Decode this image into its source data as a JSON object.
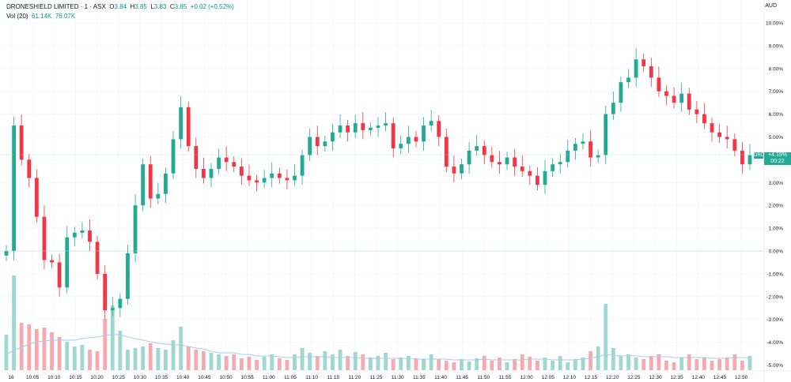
{
  "legend": {
    "symbol": "DRONESHIELD LIMITED · 1 · ASX",
    "open_label": "O",
    "open": "3.84",
    "high_label": "H",
    "high": "3.85",
    "low_label": "L",
    "low": "3.83",
    "close_label": "C",
    "close": "3.85",
    "change": "+0.02 (+0.52%)",
    "vol_label": "Vol (20)",
    "vol_value": "61.14K",
    "vol_ma": "76.07K"
  },
  "price_scale": {
    "currency": "AUD",
    "ticks": [
      "10.00%",
      "9.00%",
      "8.00%",
      "7.00%",
      "6.00%",
      "5.00%",
      "4.00%",
      "3.00%",
      "2.00%",
      "1.00%",
      "0.00%",
      "-1.00%",
      "-2.00%",
      "-3.00%",
      "-4.00%",
      "-5.00%"
    ]
  },
  "current": {
    "symbol_tag": "DRO",
    "change": "+4.19%",
    "countdown": "00:22"
  },
  "colors": {
    "up": "#22ab94",
    "down": "#f23645",
    "vol_up": "#9fd8cf",
    "vol_down": "#f7a9b0",
    "ma": "#aacbe9",
    "grid": "#f0f3fa"
  },
  "chart_data": {
    "type": "candlestick",
    "title": "DRONESHIELD LIMITED · 1 · ASX",
    "ylabel": "",
    "ylim": [
      -5.5,
      10.5
    ],
    "grid": true,
    "x_ticks": [
      "16",
      "10:05",
      "10:10",
      "10:15",
      "10:20",
      "10:25",
      "10:30",
      "10:35",
      "10:40",
      "10:45",
      "10:50",
      "10:55",
      "11:00",
      "11:05",
      "11:10",
      "11:15",
      "11:20",
      "11:25",
      "11:30",
      "11:35",
      "11:40",
      "11:45",
      "11:50",
      "11:55",
      "12:00",
      "12:05",
      "12:10",
      "12:15",
      "12:20",
      "12:25",
      "12:30",
      "12:35",
      "12:40",
      "12:45",
      "12:50"
    ],
    "percent_close": [
      0.0,
      5.5,
      4.0,
      3.2,
      1.5,
      -0.4,
      -0.5,
      -1.6,
      0.6,
      0.8,
      0.9,
      0.4,
      -1.0,
      -2.6,
      -2.5,
      -2.1,
      -0.1,
      2.0,
      3.8,
      2.3,
      2.5,
      3.4,
      4.9,
      6.3,
      4.6,
      3.6,
      3.2,
      3.6,
      4.1,
      3.9,
      3.7,
      3.3,
      3.1,
      3.0,
      3.2,
      3.4,
      3.2,
      3.1,
      3.3,
      4.2,
      5.0,
      4.6,
      4.8,
      5.2,
      5.5,
      5.2,
      5.6,
      5.3,
      5.4,
      5.5,
      5.6,
      4.5,
      4.7,
      5.0,
      4.8,
      5.5,
      5.7,
      5.0,
      3.7,
      3.4,
      3.8,
      4.4,
      4.6,
      4.2,
      3.9,
      3.8,
      4.1,
      3.7,
      3.5,
      3.3,
      2.9,
      3.5,
      3.8,
      3.9,
      4.4,
      4.7,
      4.8,
      4.1,
      4.2,
      6.0,
      6.5,
      7.4,
      7.6,
      8.4,
      8.1,
      7.6,
      7.0,
      6.8,
      6.5,
      6.9,
      6.2,
      6.0,
      5.6,
      5.2,
      5.0,
      4.9,
      4.4,
      3.8,
      4.2
    ],
    "volume": [
      45,
      120,
      60,
      58,
      52,
      54,
      48,
      42,
      36,
      30,
      32,
      26,
      24,
      65,
      82,
      50,
      26,
      28,
      30,
      34,
      28,
      26,
      38,
      55,
      30,
      26,
      24,
      22,
      20,
      18,
      20,
      15,
      17,
      13,
      17,
      20,
      15,
      13,
      20,
      28,
      22,
      18,
      24,
      20,
      26,
      18,
      23,
      20,
      16,
      18,
      22,
      14,
      16,
      18,
      15,
      14,
      20,
      14,
      12,
      10,
      14,
      11,
      15,
      18,
      12,
      16,
      10,
      14,
      20,
      17,
      12,
      16,
      12,
      18,
      10,
      14,
      16,
      24,
      30,
      84,
      28,
      18,
      20,
      16,
      14,
      18,
      20,
      12,
      10,
      16,
      20,
      14,
      16,
      12,
      14,
      16,
      20,
      12,
      18
    ],
    "volume_ma": [
      20,
      25,
      29,
      33,
      36,
      37,
      38,
      38,
      38,
      38,
      40,
      41,
      42,
      44,
      45,
      45,
      42,
      40,
      38,
      36,
      34,
      33,
      32,
      32,
      30,
      28,
      27,
      24,
      22,
      22,
      22,
      20,
      20,
      18,
      18,
      18,
      17,
      16,
      16,
      17,
      17,
      17,
      17,
      16,
      16,
      16,
      16,
      15,
      15,
      15,
      15,
      15,
      15,
      15,
      14,
      14,
      14,
      14,
      14,
      13,
      13,
      13,
      13,
      14,
      13,
      13,
      13,
      13,
      13,
      14,
      14,
      14,
      13,
      13,
      13,
      13,
      14,
      15,
      17,
      20,
      19,
      18,
      19,
      18,
      17,
      17,
      17,
      17,
      16,
      16,
      16,
      16,
      16,
      15,
      15,
      15,
      16,
      16,
      16
    ]
  }
}
